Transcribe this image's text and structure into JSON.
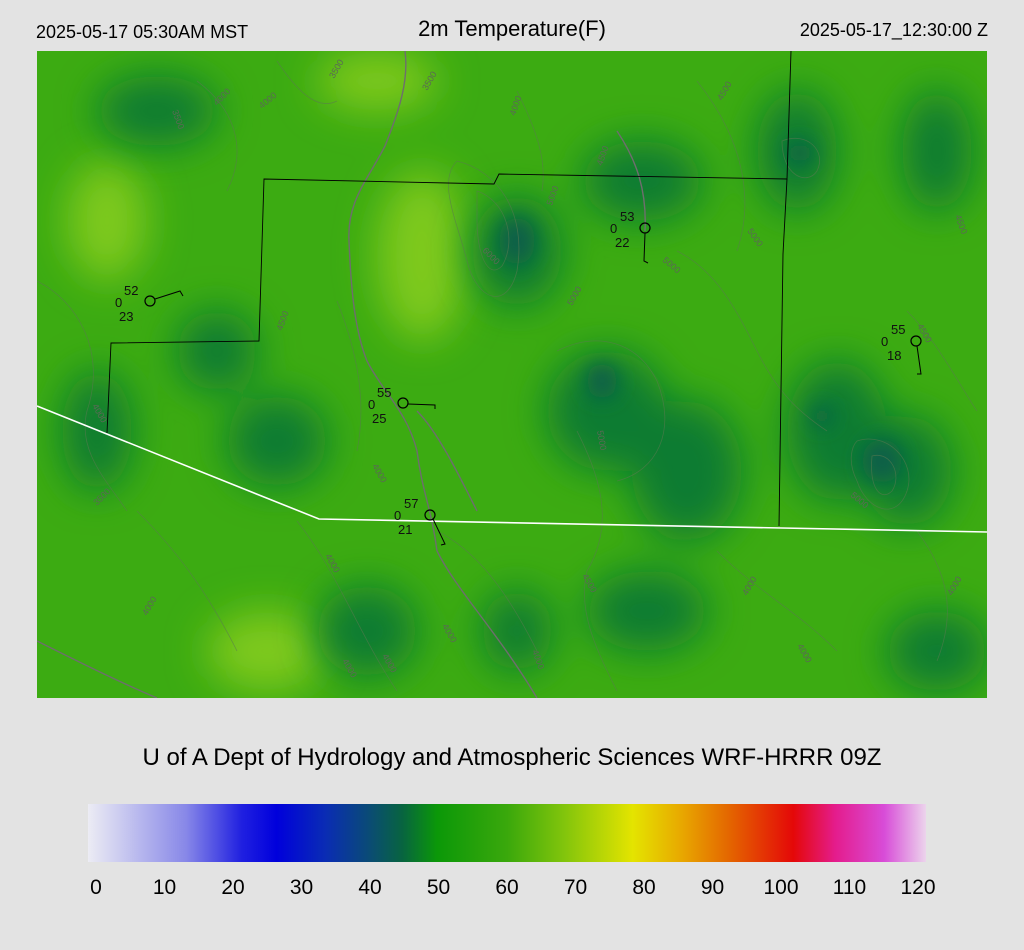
{
  "header": {
    "local_time": "2025-05-17 05:30AM MST",
    "title": "2m Temperature(F)",
    "utc_time": "2025-05-17_12:30:00 Z"
  },
  "footer": {
    "credit": "U of A Dept of Hydrology and Atmospheric Sciences WRF-HRRR 09Z"
  },
  "colorbar": {
    "min": 0,
    "max": 120,
    "tick_labels": [
      "0",
      "10",
      "20",
      "30",
      "40",
      "50",
      "60",
      "70",
      "80",
      "90",
      "100",
      "110",
      "120"
    ],
    "stops": [
      {
        "value": 0,
        "color": "#ececf4"
      },
      {
        "value": 14,
        "color": "#8888e8"
      },
      {
        "value": 22,
        "color": "#2020e0"
      },
      {
        "value": 27,
        "color": "#0000dc"
      },
      {
        "value": 34,
        "color": "#0a2cb4"
      },
      {
        "value": 40,
        "color": "#0a4a78"
      },
      {
        "value": 45,
        "color": "#086440"
      },
      {
        "value": 50,
        "color": "#0b9808"
      },
      {
        "value": 60,
        "color": "#3aa80c"
      },
      {
        "value": 68,
        "color": "#80c40c"
      },
      {
        "value": 78,
        "color": "#e4e400"
      },
      {
        "value": 85,
        "color": "#e8a800"
      },
      {
        "value": 92,
        "color": "#e46400"
      },
      {
        "value": 101,
        "color": "#e40808"
      },
      {
        "value": 107,
        "color": "#e41c8c"
      },
      {
        "value": 114,
        "color": "#d84cd8"
      },
      {
        "value": 120,
        "color": "#ecd4ec"
      }
    ]
  },
  "map": {
    "colors": {
      "base": "#3cab12",
      "dark_patch": "#0e7c30",
      "light_patch": "#7ec91a",
      "contour": "#5a7a50",
      "roads": "#6e6e6e",
      "border": "#ffffff",
      "boundary": "#000000"
    },
    "contour_labels": [
      "3500",
      "4000",
      "4500",
      "5000",
      "5500",
      "6000"
    ],
    "stations": [
      {
        "id": "st1",
        "temp": "52",
        "wind": "0",
        "dewpoint": "23"
      },
      {
        "id": "st2",
        "temp": "53",
        "wind": "0",
        "dewpoint": "22"
      },
      {
        "id": "st3",
        "temp": "55",
        "wind": "0",
        "dewpoint": "18"
      },
      {
        "id": "st4",
        "temp": "55",
        "wind": "0",
        "dewpoint": "25"
      },
      {
        "id": "st5",
        "temp": "57",
        "wind": "0",
        "dewpoint": "21"
      }
    ]
  }
}
